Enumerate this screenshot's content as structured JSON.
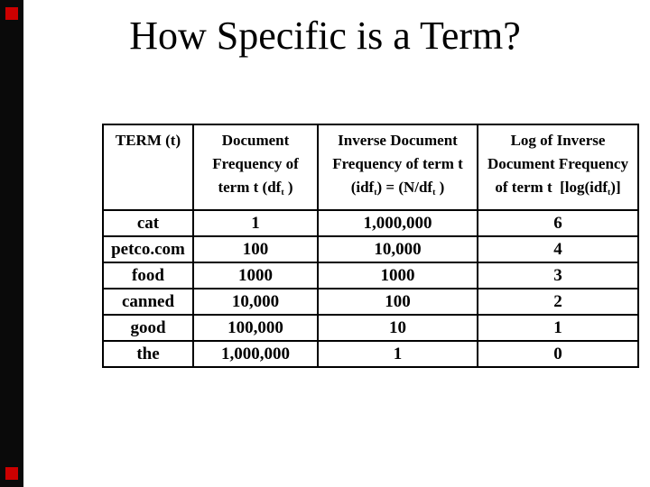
{
  "slide": {
    "title": "How Specific is a Term?",
    "decor": {
      "bar_color": "#0a0a0a",
      "accent_color": "#cc0000"
    }
  },
  "table": {
    "columns": [
      {
        "id": "term",
        "segments": [
          {
            "t": "TERM (t)"
          }
        ]
      },
      {
        "id": "document_frequency",
        "segments": [
          {
            "t": "Document"
          },
          {
            "br": true
          },
          {
            "t": "Frequency of"
          },
          {
            "br": true
          },
          {
            "t": "term t (df"
          },
          {
            "t": "t",
            "sub": true
          },
          {
            "t": " )"
          }
        ]
      },
      {
        "id": "inverse_document_frequency",
        "segments": [
          {
            "t": "Inverse Document"
          },
          {
            "br": true
          },
          {
            "t": "Frequency of term t"
          },
          {
            "br": true
          },
          {
            "t": "(idf"
          },
          {
            "t": "t",
            "sub": true
          },
          {
            "t": ") = (N/df"
          },
          {
            "t": "t",
            "sub": true
          },
          {
            "t": " )"
          }
        ]
      },
      {
        "id": "log_inverse_document_frequency",
        "segments": [
          {
            "t": "Log of Inverse"
          },
          {
            "br": true
          },
          {
            "t": "Document Frequency"
          },
          {
            "br": true
          },
          {
            "t": "of term t  [log(idf"
          },
          {
            "t": "t",
            "sub": true
          },
          {
            "t": ")]"
          }
        ]
      }
    ],
    "rows": [
      {
        "term": "cat",
        "df": "1",
        "idf": "1,000,000",
        "log_idf": "6"
      },
      {
        "term": "petco.com",
        "df": "100",
        "idf": "10,000",
        "log_idf": "4"
      },
      {
        "term": "food",
        "df": "1000",
        "idf": "1000",
        "log_idf": "3"
      },
      {
        "term": "canned",
        "df": "10,000",
        "idf": "100",
        "log_idf": "2"
      },
      {
        "term": "good",
        "df": "100,000",
        "idf": "10",
        "log_idf": "1"
      },
      {
        "term": "the",
        "df": "1,000,000",
        "idf": "1",
        "log_idf": "0"
      }
    ]
  }
}
